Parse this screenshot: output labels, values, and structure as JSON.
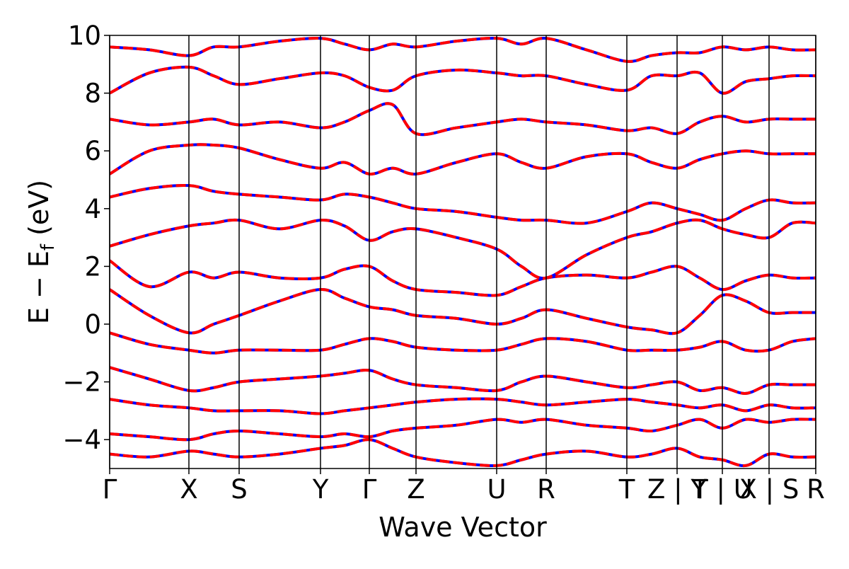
{
  "chart_data": {
    "type": "line",
    "xlabel": "Wave Vector",
    "ylabel_parts": [
      "E  −  E",
      "f",
      " (eV)"
    ],
    "xlim": [
      0,
      9.98
    ],
    "ylim": [
      -5,
      10
    ],
    "yticks": [
      {
        "value": -4,
        "label": "−4"
      },
      {
        "value": -2,
        "label": "−2"
      },
      0,
      2,
      4,
      6,
      8,
      10
    ],
    "xticks": [
      {
        "value": 0,
        "label": "Γ"
      },
      {
        "value": 1.12,
        "label": "X"
      },
      {
        "value": 1.83,
        "label": "S"
      },
      {
        "value": 2.98,
        "label": "Y"
      },
      {
        "value": 3.67,
        "label": "Γ"
      },
      {
        "value": 4.33,
        "label": "Z"
      },
      {
        "value": 5.47,
        "label": "U"
      },
      {
        "value": 6.17,
        "label": "R"
      },
      {
        "value": 7.31,
        "label": "T"
      },
      {
        "value": 8.02,
        "label": "Z | Y"
      },
      {
        "value": 8.66,
        "label": "T | U"
      },
      {
        "value": 9.32,
        "label": "X | S"
      },
      {
        "value": 9.98,
        "label": "R"
      }
    ],
    "spin_colors": [
      "#0000ff",
      "#ff0000"
    ],
    "x": [
      0,
      0.56,
      1.12,
      1.47,
      1.83,
      2.4,
      2.98,
      3.32,
      3.67,
      4.0,
      4.33,
      4.9,
      5.47,
      5.82,
      6.17,
      6.74,
      7.31,
      7.66,
      8.02,
      8.34,
      8.66,
      8.99,
      9.32,
      9.65,
      9.98
    ],
    "series": [
      {
        "values": [
          -4.5,
          -4.6,
          -4.4,
          -4.5,
          -4.6,
          -4.5,
          -4.3,
          -4.2,
          -4.0,
          -4.3,
          -4.6,
          -4.8,
          -4.9,
          -4.7,
          -4.5,
          -4.4,
          -4.6,
          -4.5,
          -4.3,
          -4.6,
          -4.7,
          -4.9,
          -4.5,
          -4.6,
          -4.6
        ]
      },
      {
        "values": [
          -3.8,
          -3.9,
          -4.0,
          -3.8,
          -3.7,
          -3.8,
          -3.9,
          -3.8,
          -3.9,
          -3.7,
          -3.6,
          -3.5,
          -3.3,
          -3.4,
          -3.3,
          -3.5,
          -3.6,
          -3.7,
          -3.5,
          -3.3,
          -3.6,
          -3.3,
          -3.4,
          -3.3,
          -3.3
        ]
      },
      {
        "values": [
          -2.6,
          -2.8,
          -2.9,
          -3.0,
          -3.0,
          -3.0,
          -3.1,
          -3.0,
          -2.9,
          -2.8,
          -2.7,
          -2.6,
          -2.6,
          -2.7,
          -2.8,
          -2.7,
          -2.6,
          -2.7,
          -2.8,
          -2.9,
          -2.8,
          -3.0,
          -2.8,
          -2.9,
          -2.9
        ]
      },
      {
        "values": [
          -1.5,
          -1.9,
          -2.3,
          -2.2,
          -2.0,
          -1.9,
          -1.8,
          -1.7,
          -1.6,
          -1.9,
          -2.1,
          -2.2,
          -2.3,
          -2.0,
          -1.8,
          -2.0,
          -2.2,
          -2.1,
          -2.0,
          -2.3,
          -2.2,
          -2.4,
          -2.1,
          -2.1,
          -2.1
        ]
      },
      {
        "values": [
          -0.3,
          -0.7,
          -0.9,
          -1.0,
          -0.9,
          -0.9,
          -0.9,
          -0.7,
          -0.5,
          -0.6,
          -0.8,
          -0.9,
          -0.9,
          -0.7,
          -0.5,
          -0.6,
          -0.9,
          -0.9,
          -0.9,
          -0.8,
          -0.6,
          -0.9,
          -0.9,
          -0.6,
          -0.5
        ]
      },
      {
        "values": [
          1.2,
          0.3,
          -0.3,
          0.0,
          0.3,
          0.8,
          1.2,
          0.9,
          0.6,
          0.5,
          0.3,
          0.2,
          0.0,
          0.2,
          0.5,
          0.2,
          -0.1,
          -0.2,
          -0.3,
          0.3,
          1.0,
          0.8,
          0.4,
          0.4,
          0.4
        ]
      },
      {
        "values": [
          2.2,
          1.3,
          1.8,
          1.6,
          1.8,
          1.6,
          1.6,
          1.9,
          2.0,
          1.5,
          1.2,
          1.1,
          1.0,
          1.3,
          1.6,
          1.7,
          1.6,
          1.8,
          2.0,
          1.6,
          1.2,
          1.5,
          1.7,
          1.6,
          1.6
        ]
      },
      {
        "values": [
          2.7,
          3.1,
          3.4,
          3.5,
          3.6,
          3.3,
          3.6,
          3.4,
          2.9,
          3.2,
          3.3,
          3.0,
          2.6,
          2.0,
          1.6,
          2.4,
          3.0,
          3.2,
          3.5,
          3.6,
          3.3,
          3.1,
          3.0,
          3.5,
          3.5
        ]
      },
      {
        "values": [
          4.4,
          4.7,
          4.8,
          4.6,
          4.5,
          4.4,
          4.3,
          4.5,
          4.4,
          4.2,
          4.0,
          3.9,
          3.7,
          3.6,
          3.6,
          3.5,
          3.9,
          4.2,
          4.0,
          3.8,
          3.6,
          4.0,
          4.3,
          4.2,
          4.2
        ]
      },
      {
        "values": [
          5.2,
          6.0,
          6.2,
          6.2,
          6.1,
          5.7,
          5.4,
          5.6,
          5.2,
          5.4,
          5.2,
          5.6,
          5.9,
          5.6,
          5.4,
          5.8,
          5.9,
          5.6,
          5.4,
          5.7,
          5.9,
          6.0,
          5.9,
          5.9,
          5.9
        ]
      },
      {
        "values": [
          7.1,
          6.9,
          7.0,
          7.1,
          6.9,
          7.0,
          6.8,
          7.0,
          7.4,
          7.6,
          6.6,
          6.8,
          7.0,
          7.1,
          7.0,
          6.9,
          6.7,
          6.8,
          6.6,
          7.0,
          7.2,
          7.0,
          7.1,
          7.1,
          7.1
        ]
      },
      {
        "values": [
          8.0,
          8.7,
          8.9,
          8.6,
          8.3,
          8.5,
          8.7,
          8.6,
          8.2,
          8.1,
          8.6,
          8.8,
          8.7,
          8.6,
          8.6,
          8.3,
          8.1,
          8.6,
          8.6,
          8.7,
          8.0,
          8.4,
          8.5,
          8.6,
          8.6
        ]
      },
      {
        "values": [
          9.6,
          9.5,
          9.3,
          9.6,
          9.6,
          9.8,
          9.9,
          9.7,
          9.5,
          9.7,
          9.6,
          9.8,
          9.9,
          9.7,
          9.9,
          9.5,
          9.1,
          9.3,
          9.4,
          9.4,
          9.6,
          9.5,
          9.6,
          9.5,
          9.5
        ]
      }
    ]
  }
}
